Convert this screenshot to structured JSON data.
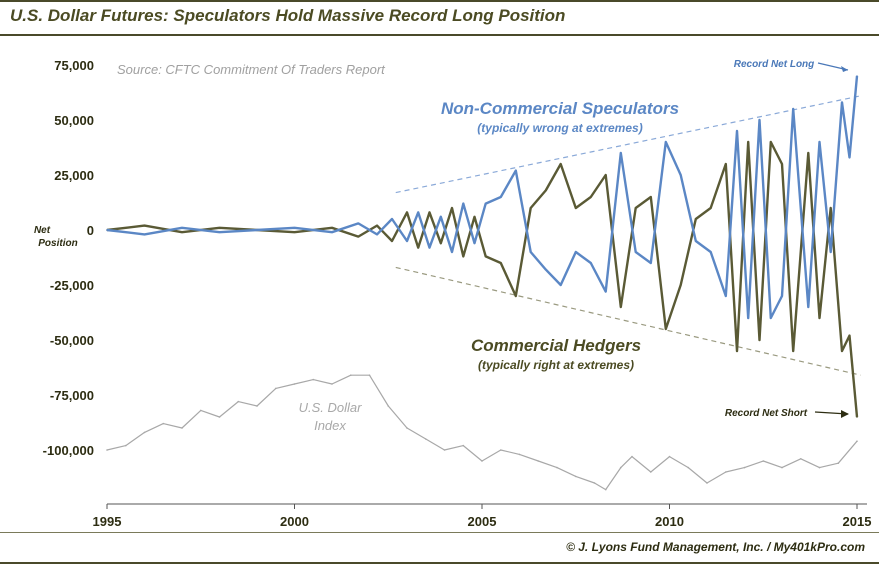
{
  "chart_data": {
    "type": "line",
    "title": "U.S. Dollar Futures: Speculators Hold Massive Record Long Position",
    "source": "Source: CFTC Commitment Of Traders Report",
    "ylabel_line1": "Net",
    "ylabel_line2": "Position",
    "xlim": [
      1995,
      2015.2
    ],
    "ylim": [
      -120000,
      80000
    ],
    "x_ticks": [
      "1995",
      "2000",
      "2005",
      "2010",
      "2015"
    ],
    "x_tick_values": [
      1995,
      2000,
      2005,
      2010,
      2015
    ],
    "y_ticks": [
      "75,000",
      "50,000",
      "25,000",
      "0",
      "-25,000",
      "-50,000",
      "-75,000",
      "-100,000"
    ],
    "y_tick_values": [
      75000,
      50000,
      25000,
      0,
      -25000,
      -50000,
      -75000,
      -100000
    ],
    "series": [
      {
        "name": "Non-Commercial Speculators",
        "subtitle": "(typically wrong at extremes)",
        "color": "#5b87c5",
        "x": [
          1995,
          1996,
          1997,
          1998,
          1999,
          2000,
          2001,
          2001.7,
          2002.2,
          2002.6,
          2003,
          2003.3,
          2003.6,
          2003.9,
          2004.2,
          2004.5,
          2004.8,
          2005.1,
          2005.5,
          2005.9,
          2006.3,
          2006.7,
          2007.1,
          2007.5,
          2007.9,
          2008.3,
          2008.7,
          2009.1,
          2009.5,
          2009.9,
          2010.3,
          2010.7,
          2011.1,
          2011.5,
          2011.8,
          2012.1,
          2012.4,
          2012.7,
          2013,
          2013.3,
          2013.7,
          2014,
          2014.3,
          2014.6,
          2014.8,
          2015
        ],
        "values": [
          0,
          -2000,
          1000,
          -1000,
          0,
          1000,
          -1000,
          3000,
          -2000,
          5000,
          -5000,
          8000,
          -8000,
          6000,
          -10000,
          12000,
          -6000,
          12000,
          15000,
          27000,
          -10000,
          -18000,
          -25000,
          -10000,
          -15000,
          -28000,
          35000,
          -10000,
          -15000,
          40000,
          25000,
          -5000,
          -10000,
          -30000,
          45000,
          -40000,
          50000,
          -40000,
          -30000,
          55000,
          -35000,
          40000,
          -10000,
          58000,
          33000,
          70000
        ]
      },
      {
        "name": "Commercial Hedgers",
        "subtitle": "(typically right at extremes)",
        "color": "#5a5a35",
        "x": [
          1995,
          1996,
          1997,
          1998,
          1999,
          2000,
          2001,
          2001.7,
          2002.2,
          2002.6,
          2003,
          2003.3,
          2003.6,
          2003.9,
          2004.2,
          2004.5,
          2004.8,
          2005.1,
          2005.5,
          2005.9,
          2006.3,
          2006.7,
          2007.1,
          2007.5,
          2007.9,
          2008.3,
          2008.7,
          2009.1,
          2009.5,
          2009.9,
          2010.3,
          2010.7,
          2011.1,
          2011.5,
          2011.8,
          2012.1,
          2012.4,
          2012.7,
          2013,
          2013.3,
          2013.7,
          2014,
          2014.3,
          2014.6,
          2014.8,
          2015
        ],
        "values": [
          0,
          2000,
          -1000,
          1000,
          0,
          -1000,
          1000,
          -3000,
          2000,
          -5000,
          8000,
          -8000,
          8000,
          -6000,
          10000,
          -12000,
          6000,
          -12000,
          -15000,
          -30000,
          10000,
          18000,
          30000,
          10000,
          15000,
          25000,
          -35000,
          10000,
          15000,
          -45000,
          -25000,
          5000,
          10000,
          30000,
          -55000,
          40000,
          -50000,
          40000,
          30000,
          -55000,
          35000,
          -40000,
          10000,
          -55000,
          -48000,
          -85000
        ]
      },
      {
        "name": "U.S. Dollar Index",
        "label_line1": "U.S. Dollar",
        "label_line2": "Index",
        "color": "#a8a8a8",
        "x": [
          1995,
          1995.5,
          1996,
          1996.5,
          1997,
          1997.5,
          1998,
          1998.5,
          1999,
          1999.5,
          2000,
          2000.5,
          2001,
          2001.5,
          2002,
          2002.5,
          2003,
          2003.5,
          2004,
          2004.5,
          2005,
          2005.5,
          2006,
          2006.5,
          2007,
          2007.5,
          2008,
          2008.3,
          2008.7,
          2009,
          2009.5,
          2010,
          2010.5,
          2011,
          2011.5,
          2012,
          2012.5,
          2013,
          2013.5,
          2014,
          2014.5,
          2015
        ],
        "values": [
          -100000,
          -98000,
          -92000,
          -88000,
          -90000,
          -82000,
          -85000,
          -78000,
          -80000,
          -72000,
          -70000,
          -68000,
          -70000,
          -66000,
          -66000,
          -80000,
          -90000,
          -95000,
          -100000,
          -98000,
          -105000,
          -100000,
          -102000,
          -105000,
          -108000,
          -112000,
          -115000,
          -118000,
          -108000,
          -103000,
          -110000,
          -103000,
          -108000,
          -115000,
          -110000,
          -108000,
          -105000,
          -108000,
          -104000,
          -108000,
          -106000,
          -96000
        ]
      }
    ],
    "trend_lines": [
      {
        "name": "upper-trend",
        "color": "#8aa9d8",
        "x": [
          2002.7,
          2015.1
        ],
        "values": [
          17000,
          61000
        ]
      },
      {
        "name": "lower-trend",
        "color": "#9a9a80",
        "x": [
          2002.7,
          2015.1
        ],
        "values": [
          -17000,
          -66000
        ]
      }
    ],
    "annotations": {
      "record_long": "Record Net Long",
      "record_short": "Record Net Short"
    }
  },
  "credit": "© J. Lyons Fund Management, Inc. / My401kPro.com"
}
